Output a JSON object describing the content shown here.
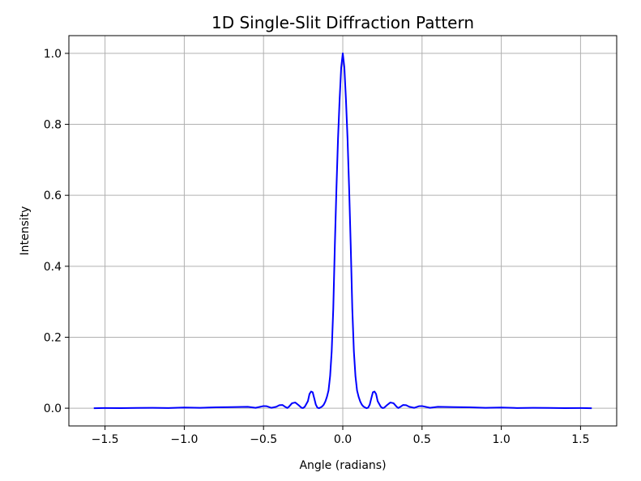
{
  "chart_data": {
    "type": "line",
    "title": "1D Single-Slit Diffraction Pattern",
    "xlabel": "Angle (radians)",
    "ylabel": "Intensity",
    "xlim": [
      -1.728,
      1.728
    ],
    "ylim": [
      -0.05,
      1.05
    ],
    "grid": true,
    "x_ticks": [
      {
        "value": -1.5,
        "label": "−1.5"
      },
      {
        "value": -1.0,
        "label": "−1.0"
      },
      {
        "value": -0.5,
        "label": "−0.5"
      },
      {
        "value": 0.0,
        "label": "0.0"
      },
      {
        "value": 0.5,
        "label": "0.5"
      },
      {
        "value": 1.0,
        "label": "1.0"
      },
      {
        "value": 1.5,
        "label": "1.5"
      }
    ],
    "y_ticks": [
      {
        "value": 0.0,
        "label": "0.0"
      },
      {
        "value": 0.2,
        "label": "0.2"
      },
      {
        "value": 0.4,
        "label": "0.4"
      },
      {
        "value": 0.6,
        "label": "0.6"
      },
      {
        "value": 0.8,
        "label": "0.8"
      },
      {
        "value": 1.0,
        "label": "1.0"
      }
    ],
    "series": [
      {
        "color": "#0000ff",
        "x_range": [
          -1.5708,
          1.5708
        ],
        "x": [
          -1.5708,
          -1.5,
          -1.4,
          -1.3,
          -1.2,
          -1.1,
          -1.0,
          -0.9,
          -0.8,
          -0.7,
          -0.6,
          -0.55,
          -0.5,
          -0.48,
          -0.45,
          -0.42,
          -0.4,
          -0.38,
          -0.36,
          -0.35,
          -0.34,
          -0.32,
          -0.3,
          -0.28,
          -0.26,
          -0.25,
          -0.24,
          -0.22,
          -0.21,
          -0.2,
          -0.19,
          -0.18,
          -0.17,
          -0.16,
          -0.15,
          -0.14,
          -0.13,
          -0.12,
          -0.11,
          -0.1,
          -0.09,
          -0.08,
          -0.07,
          -0.06,
          -0.05,
          -0.04,
          -0.03,
          -0.02,
          -0.01,
          0.0,
          0.01,
          0.02,
          0.03,
          0.04,
          0.05,
          0.06,
          0.07,
          0.08,
          0.09,
          0.1,
          0.11,
          0.12,
          0.13,
          0.14,
          0.15,
          0.16,
          0.17,
          0.18,
          0.19,
          0.2,
          0.21,
          0.22,
          0.24,
          0.25,
          0.26,
          0.28,
          0.3,
          0.32,
          0.34,
          0.35,
          0.36,
          0.38,
          0.4,
          0.42,
          0.45,
          0.48,
          0.5,
          0.55,
          0.6,
          0.7,
          0.8,
          0.9,
          1.0,
          1.1,
          1.2,
          1.3,
          1.4,
          1.5,
          1.5708
        ],
        "y": [
          0.0,
          0.0005,
          0.0003,
          0.0008,
          0.001,
          0.0005,
          0.0018,
          0.0012,
          0.0025,
          0.003,
          0.004,
          0.001,
          0.006,
          0.0055,
          0.001,
          0.004,
          0.0085,
          0.009,
          0.003,
          0.0005,
          0.004,
          0.014,
          0.016,
          0.009,
          0.001,
          0.0005,
          0.004,
          0.02,
          0.04,
          0.047,
          0.045,
          0.028,
          0.01,
          0.0015,
          0.0,
          0.002,
          0.005,
          0.01,
          0.019,
          0.032,
          0.05,
          0.09,
          0.16,
          0.28,
          0.46,
          0.62,
          0.76,
          0.87,
          0.96,
          1.0,
          0.96,
          0.87,
          0.76,
          0.62,
          0.46,
          0.28,
          0.16,
          0.09,
          0.05,
          0.032,
          0.019,
          0.01,
          0.005,
          0.002,
          0.0,
          0.0015,
          0.01,
          0.028,
          0.045,
          0.047,
          0.04,
          0.02,
          0.004,
          0.0005,
          0.001,
          0.009,
          0.016,
          0.014,
          0.004,
          0.0005,
          0.003,
          0.009,
          0.0085,
          0.004,
          0.001,
          0.0055,
          0.006,
          0.001,
          0.004,
          0.003,
          0.0025,
          0.0012,
          0.0018,
          0.0005,
          0.001,
          0.0008,
          0.0003,
          0.0005,
          0.0
        ]
      }
    ]
  }
}
